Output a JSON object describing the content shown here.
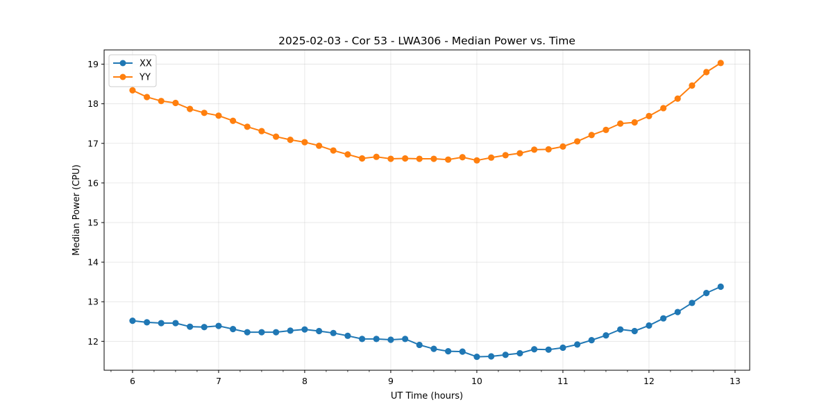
{
  "chart_data": {
    "type": "line",
    "title": "2025-02-03 - Cor 53 - LWA306 - Median Power vs. Time",
    "xlabel": "UT Time (hours)",
    "ylabel": "Median Power (CPU)",
    "xlim": [
      5.67,
      13.17
    ],
    "ylim": [
      11.27,
      19.36
    ],
    "xticks": [
      6,
      7,
      8,
      9,
      10,
      11,
      12,
      13
    ],
    "yticks": [
      12,
      13,
      14,
      15,
      16,
      17,
      18,
      19
    ],
    "grid": true,
    "legend_position": "top-left",
    "x": [
      6.0,
      6.167,
      6.333,
      6.5,
      6.667,
      6.833,
      7.0,
      7.167,
      7.333,
      7.5,
      7.667,
      7.833,
      8.0,
      8.167,
      8.333,
      8.5,
      8.667,
      8.833,
      9.0,
      9.167,
      9.333,
      9.5,
      9.667,
      9.833,
      10.0,
      10.167,
      10.333,
      10.5,
      10.667,
      10.833,
      11.0,
      11.167,
      11.333,
      11.5,
      11.667,
      11.833,
      12.0,
      12.167,
      12.333,
      12.5,
      12.667,
      12.833
    ],
    "series": [
      {
        "name": "XX",
        "color": "#1f77b4",
        "values": [
          12.52,
          12.48,
          12.46,
          12.46,
          12.37,
          12.36,
          12.39,
          12.31,
          12.23,
          12.23,
          12.23,
          12.27,
          12.3,
          12.26,
          12.21,
          12.14,
          12.06,
          12.06,
          12.04,
          12.06,
          11.91,
          11.81,
          11.75,
          11.74,
          11.61,
          11.62,
          11.66,
          11.7,
          11.8,
          11.79,
          11.84,
          11.92,
          12.03,
          12.15,
          12.3,
          12.26,
          12.4,
          12.58,
          12.74,
          12.97,
          13.22,
          13.38
        ]
      },
      {
        "name": "YY",
        "color": "#ff7f0e",
        "values": [
          18.34,
          18.17,
          18.07,
          18.02,
          17.87,
          17.77,
          17.7,
          17.57,
          17.42,
          17.31,
          17.17,
          17.09,
          17.03,
          16.94,
          16.82,
          16.72,
          16.62,
          16.66,
          16.61,
          16.62,
          16.61,
          16.61,
          16.59,
          16.65,
          16.57,
          16.64,
          16.7,
          16.75,
          16.84,
          16.85,
          16.92,
          17.05,
          17.21,
          17.34,
          17.5,
          17.53,
          17.69,
          17.89,
          18.13,
          18.46,
          18.8,
          19.03
        ]
      }
    ]
  }
}
